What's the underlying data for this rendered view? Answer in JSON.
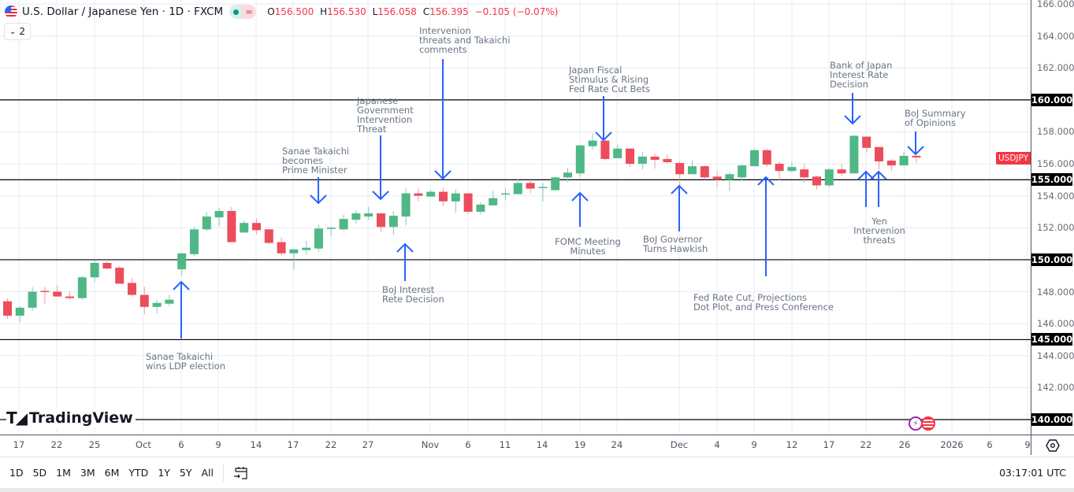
{
  "header": {
    "symbol_title": "U.S. Dollar / Japanese Yen · 1D · FXCM",
    "market_status_icon": "green-dot-icon",
    "data_type_icon": "approx-icon",
    "open_key": "O",
    "open": "156.500",
    "high_key": "H",
    "high": "156.530",
    "low_key": "L",
    "low": "156.058",
    "close_key": "C",
    "close": "156.395",
    "change": "−0.105 (−0.07%)",
    "indicators_toggle": "2"
  },
  "colors": {
    "up": "#4fb886",
    "down": "#ec4d5c",
    "annotation_arrow": "#2962ff",
    "level_line": "#000000",
    "symbol_label": "#f23645"
  },
  "annotations": [
    {
      "text": "Sanae Takaichi\nwins LDP election",
      "direction": "up"
    },
    {
      "text": "Sanae Takaichi\nbecomes\nPrime Minister",
      "direction": "down"
    },
    {
      "text": "Japanese\nGovernment\nIntervention\nThreat",
      "direction": "down"
    },
    {
      "text": "Intervenion\nthreats and Takaichi\ncomments",
      "direction": "down"
    },
    {
      "text": "BoJ Interest\nRete Decision",
      "direction": "up"
    },
    {
      "text": "Japan Fiscal\nStimulus & Rising\nFed Rate Cut Bets",
      "direction": "down"
    },
    {
      "text": "FOMC Meeting\nMinutes",
      "direction": "up"
    },
    {
      "text": "BoJ Governor\nTurns Hawkish",
      "direction": "up"
    },
    {
      "text": "Fed Rate Cut, Projections\nDot Plot, and Press Conference",
      "direction": "up"
    },
    {
      "text": "Bank of Japan\nInterest Rate\nDecision",
      "direction": "down"
    },
    {
      "text": "BoJ Summary\nof Opinions",
      "direction": "down"
    },
    {
      "text": "Yen\nIntervenion\nthreats",
      "direction": "up"
    }
  ],
  "price_axis": {
    "labels": [
      "166.000",
      "164.000",
      "162.000",
      "158.000",
      "156.000",
      "154.000",
      "152.000",
      "148.000",
      "146.000",
      "144.000",
      "142.000"
    ],
    "level_labels": [
      "160.000",
      "155.000",
      "150.000",
      "145.000",
      "140.000"
    ],
    "symbol_label": "USDJPY"
  },
  "time_axis": {
    "labels": [
      "17",
      "22",
      "25",
      "Oct",
      "6",
      "9",
      "14",
      "17",
      "22",
      "27",
      "Nov",
      "6",
      "11",
      "14",
      "19",
      "24",
      "Dec",
      "4",
      "9",
      "12",
      "17",
      "22",
      "26",
      "2026",
      "6",
      "9"
    ]
  },
  "logo": {
    "text": "TradingView"
  },
  "toolbar": {
    "ranges": [
      "1D",
      "5D",
      "1M",
      "3M",
      "6M",
      "YTD",
      "1Y",
      "5Y",
      "All"
    ],
    "clock": "03:17:01 UTC"
  },
  "chart_data": {
    "type": "candlestick",
    "symbol": "USDJPY",
    "interval": "1D",
    "ylim": [
      139.5,
      166
    ],
    "grid": true,
    "horizontal_levels": [
      160,
      155,
      150,
      145,
      140
    ],
    "candles": [
      {
        "date": "2025-09-16",
        "o": 147.4,
        "h": 147.6,
        "l": 146.3,
        "c": 146.5
      },
      {
        "date": "2025-09-17",
        "o": 146.5,
        "h": 147.1,
        "l": 146.1,
        "c": 147.0
      },
      {
        "date": "2025-09-18",
        "o": 147.0,
        "h": 148.3,
        "l": 146.8,
        "c": 148.0
      },
      {
        "date": "2025-09-19",
        "o": 148.05,
        "h": 148.3,
        "l": 147.25,
        "c": 148.0
      },
      {
        "date": "2025-09-22",
        "o": 148.0,
        "h": 148.4,
        "l": 147.7,
        "c": 147.7
      },
      {
        "date": "2025-09-23",
        "o": 147.7,
        "h": 148.0,
        "l": 147.5,
        "c": 147.6
      },
      {
        "date": "2025-09-24",
        "o": 147.6,
        "h": 149.0,
        "l": 147.5,
        "c": 148.9
      },
      {
        "date": "2025-09-25",
        "o": 148.9,
        "h": 149.95,
        "l": 148.6,
        "c": 149.8
      },
      {
        "date": "2025-09-26",
        "o": 149.8,
        "h": 150.0,
        "l": 149.4,
        "c": 149.45
      },
      {
        "date": "2025-09-29",
        "o": 149.5,
        "h": 149.6,
        "l": 148.5,
        "c": 148.5
      },
      {
        "date": "2025-09-30",
        "o": 148.55,
        "h": 148.85,
        "l": 147.7,
        "c": 147.8
      },
      {
        "date": "2025-10-01",
        "o": 147.8,
        "h": 148.3,
        "l": 146.6,
        "c": 147.05
      },
      {
        "date": "2025-10-02",
        "o": 147.05,
        "h": 147.5,
        "l": 146.65,
        "c": 147.3
      },
      {
        "date": "2025-10-03",
        "o": 147.25,
        "h": 147.8,
        "l": 147.1,
        "c": 147.5
      },
      {
        "date": "2025-10-06",
        "o": 149.4,
        "h": 150.45,
        "l": 149.0,
        "c": 150.4
      },
      {
        "date": "2025-10-07",
        "o": 150.35,
        "h": 152.05,
        "l": 150.2,
        "c": 151.9
      },
      {
        "date": "2025-10-08",
        "o": 151.9,
        "h": 153.0,
        "l": 151.8,
        "c": 152.7
      },
      {
        "date": "2025-10-09",
        "o": 152.65,
        "h": 153.25,
        "l": 152.1,
        "c": 153.05
      },
      {
        "date": "2025-10-10",
        "o": 153.05,
        "h": 153.3,
        "l": 151.1,
        "c": 151.1
      },
      {
        "date": "2025-10-13",
        "o": 151.7,
        "h": 152.45,
        "l": 151.7,
        "c": 152.3
      },
      {
        "date": "2025-10-14",
        "o": 152.3,
        "h": 152.6,
        "l": 151.6,
        "c": 151.85
      },
      {
        "date": "2025-10-15",
        "o": 151.9,
        "h": 151.9,
        "l": 150.95,
        "c": 151.05
      },
      {
        "date": "2025-10-16",
        "o": 151.1,
        "h": 151.4,
        "l": 150.25,
        "c": 150.4
      },
      {
        "date": "2025-10-17",
        "o": 150.4,
        "h": 150.65,
        "l": 149.4,
        "c": 150.65
      },
      {
        "date": "2025-10-20",
        "o": 150.6,
        "h": 151.2,
        "l": 150.3,
        "c": 150.75
      },
      {
        "date": "2025-10-21",
        "o": 150.7,
        "h": 152.2,
        "l": 150.5,
        "c": 151.95
      },
      {
        "date": "2025-10-22",
        "o": 151.95,
        "h": 152.05,
        "l": 151.5,
        "c": 152.0
      },
      {
        "date": "2025-10-23",
        "o": 151.9,
        "h": 152.8,
        "l": 151.8,
        "c": 152.55
      },
      {
        "date": "2025-10-24",
        "o": 152.5,
        "h": 153.1,
        "l": 152.25,
        "c": 152.9
      },
      {
        "date": "2025-10-27",
        "o": 152.7,
        "h": 153.3,
        "l": 152.5,
        "c": 152.9
      },
      {
        "date": "2025-10-28",
        "o": 152.9,
        "h": 152.9,
        "l": 151.75,
        "c": 152.05
      },
      {
        "date": "2025-10-29",
        "o": 152.05,
        "h": 153.05,
        "l": 151.55,
        "c": 152.75
      },
      {
        "date": "2025-10-30",
        "o": 152.7,
        "h": 154.5,
        "l": 152.15,
        "c": 154.15
      },
      {
        "date": "2025-10-31",
        "o": 154.15,
        "h": 154.45,
        "l": 153.65,
        "c": 154.0
      },
      {
        "date": "2025-11-03",
        "o": 153.95,
        "h": 154.35,
        "l": 153.95,
        "c": 154.25
      },
      {
        "date": "2025-11-04",
        "o": 154.25,
        "h": 154.5,
        "l": 153.35,
        "c": 153.65
      },
      {
        "date": "2025-11-05",
        "o": 153.65,
        "h": 154.4,
        "l": 152.95,
        "c": 154.15
      },
      {
        "date": "2025-11-06",
        "o": 154.15,
        "h": 154.15,
        "l": 152.85,
        "c": 153.0
      },
      {
        "date": "2025-11-07",
        "o": 153.0,
        "h": 153.6,
        "l": 152.85,
        "c": 153.45
      },
      {
        "date": "2025-11-10",
        "o": 153.4,
        "h": 154.3,
        "l": 153.4,
        "c": 153.85
      },
      {
        "date": "2025-11-11",
        "o": 154.1,
        "h": 154.5,
        "l": 153.7,
        "c": 154.15
      },
      {
        "date": "2025-11-12",
        "o": 154.1,
        "h": 155.05,
        "l": 154.1,
        "c": 154.8
      },
      {
        "date": "2025-11-13",
        "o": 154.8,
        "h": 155.0,
        "l": 154.15,
        "c": 154.45
      },
      {
        "date": "2025-11-14",
        "o": 154.5,
        "h": 154.8,
        "l": 153.65,
        "c": 154.55
      },
      {
        "date": "2025-11-17",
        "o": 154.35,
        "h": 155.2,
        "l": 154.3,
        "c": 155.15
      },
      {
        "date": "2025-11-18",
        "o": 155.15,
        "h": 155.75,
        "l": 154.85,
        "c": 155.45
      },
      {
        "date": "2025-11-19",
        "o": 155.4,
        "h": 157.2,
        "l": 155.2,
        "c": 157.15
      },
      {
        "date": "2025-11-20",
        "o": 157.1,
        "h": 157.9,
        "l": 156.9,
        "c": 157.45
      },
      {
        "date": "2025-11-21",
        "o": 157.45,
        "h": 157.45,
        "l": 156.2,
        "c": 156.3
      },
      {
        "date": "2025-11-24",
        "o": 156.35,
        "h": 157.2,
        "l": 156.35,
        "c": 156.95
      },
      {
        "date": "2025-11-25",
        "o": 156.95,
        "h": 156.95,
        "l": 155.8,
        "c": 156.0
      },
      {
        "date": "2025-11-26",
        "o": 156.0,
        "h": 156.75,
        "l": 155.65,
        "c": 156.45
      },
      {
        "date": "2025-11-27",
        "o": 156.45,
        "h": 156.65,
        "l": 155.7,
        "c": 156.25
      },
      {
        "date": "2025-11-28",
        "o": 156.3,
        "h": 156.6,
        "l": 156.0,
        "c": 156.1
      },
      {
        "date": "2025-12-01",
        "o": 156.05,
        "h": 156.15,
        "l": 154.65,
        "c": 155.35
      },
      {
        "date": "2025-12-02",
        "o": 155.35,
        "h": 156.2,
        "l": 155.35,
        "c": 155.85
      },
      {
        "date": "2025-12-03",
        "o": 155.85,
        "h": 155.9,
        "l": 155.0,
        "c": 155.15
      },
      {
        "date": "2025-12-04",
        "o": 155.2,
        "h": 155.55,
        "l": 154.55,
        "c": 155.0
      },
      {
        "date": "2025-12-05",
        "o": 155.0,
        "h": 155.5,
        "l": 154.3,
        "c": 155.35
      },
      {
        "date": "2025-12-08",
        "o": 155.15,
        "h": 156.0,
        "l": 154.9,
        "c": 155.9
      },
      {
        "date": "2025-12-09",
        "o": 155.85,
        "h": 156.95,
        "l": 155.85,
        "c": 156.85
      },
      {
        "date": "2025-12-10",
        "o": 156.85,
        "h": 156.95,
        "l": 155.8,
        "c": 155.95
      },
      {
        "date": "2025-12-11",
        "o": 156.0,
        "h": 156.15,
        "l": 154.95,
        "c": 155.55
      },
      {
        "date": "2025-12-12",
        "o": 155.55,
        "h": 156.15,
        "l": 155.45,
        "c": 155.8
      },
      {
        "date": "2025-12-15",
        "o": 155.65,
        "h": 156.0,
        "l": 154.8,
        "c": 155.15
      },
      {
        "date": "2025-12-16",
        "o": 155.2,
        "h": 155.25,
        "l": 154.4,
        "c": 154.65
      },
      {
        "date": "2025-12-17",
        "o": 154.65,
        "h": 155.75,
        "l": 154.55,
        "c": 155.65
      },
      {
        "date": "2025-12-18",
        "o": 155.65,
        "h": 156.0,
        "l": 155.25,
        "c": 155.4
      },
      {
        "date": "2025-12-19",
        "o": 155.4,
        "h": 157.8,
        "l": 155.4,
        "c": 157.75
      },
      {
        "date": "2025-12-22",
        "o": 157.7,
        "h": 157.7,
        "l": 156.7,
        "c": 157.0
      },
      {
        "date": "2025-12-23",
        "o": 157.05,
        "h": 157.05,
        "l": 155.65,
        "c": 156.15
      },
      {
        "date": "2025-12-24",
        "o": 156.2,
        "h": 156.3,
        "l": 155.55,
        "c": 155.9
      },
      {
        "date": "2025-12-26",
        "o": 155.9,
        "h": 156.75,
        "l": 155.9,
        "c": 156.5
      },
      {
        "date": "2025-12-29",
        "o": 156.5,
        "h": 156.53,
        "l": 156.058,
        "c": 156.395
      }
    ]
  }
}
